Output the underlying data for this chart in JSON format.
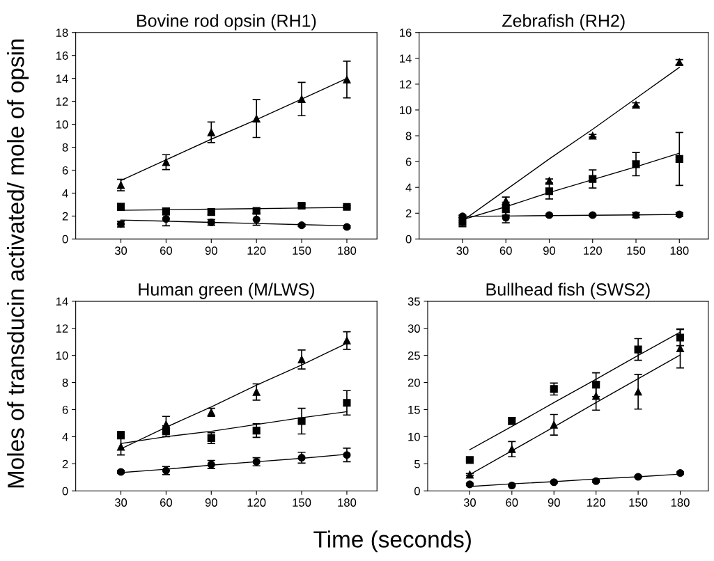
{
  "chart_data": [
    {
      "type": "scatter",
      "title": "Bovine rod opsin (RH1)",
      "ylabel": "Moles of transducin activated/ mole of opsin",
      "x": [
        30,
        60,
        90,
        120,
        150,
        180
      ],
      "xlim": [
        0,
        200
      ],
      "xticks": [
        30,
        60,
        90,
        120,
        150,
        180
      ],
      "ylim": [
        0,
        18
      ],
      "yticks": [
        0,
        2,
        4,
        6,
        8,
        10,
        12,
        14,
        16,
        18
      ],
      "grid": false,
      "series": [
        {
          "color": "#000000",
          "marker": "triangle",
          "values": [
            4.7,
            6.7,
            9.3,
            10.5,
            12.2,
            13.9
          ],
          "errors": [
            0.5,
            0.65,
            0.9,
            1.65,
            1.45,
            1.6
          ]
        },
        {
          "color": "#000000",
          "marker": "square",
          "values": [
            2.8,
            2.4,
            2.35,
            2.45,
            2.9,
            2.8
          ],
          "errors": [
            0.3,
            0.3,
            0.25,
            0.2,
            0.15,
            0.1
          ]
        },
        {
          "color": "#000000",
          "marker": "circle",
          "values": [
            1.3,
            1.75,
            1.45,
            1.7,
            1.2,
            1.05
          ],
          "errors": [
            0.25,
            0.6,
            0.25,
            0.5,
            0.1,
            0.1
          ]
        },
        {
          "type": "line",
          "color": "#000000",
          "values": [
            5.1,
            6.9,
            8.7,
            10.4,
            12.2,
            14.0
          ]
        },
        {
          "type": "line",
          "color": "#000000",
          "values": [
            2.5,
            2.55,
            2.6,
            2.65,
            2.7,
            2.75
          ]
        },
        {
          "type": "line",
          "color": "#000000",
          "values": [
            1.65,
            1.55,
            1.45,
            1.35,
            1.25,
            1.15
          ]
        }
      ]
    },
    {
      "type": "scatter",
      "title": "Zebrafish (RH2)",
      "x": [
        30,
        60,
        90,
        120,
        150,
        180
      ],
      "xlim": [
        0,
        200
      ],
      "xticks": [
        30,
        60,
        90,
        120,
        150,
        180
      ],
      "ylim": [
        0,
        16
      ],
      "yticks": [
        0,
        2,
        4,
        6,
        8,
        10,
        12,
        14,
        16
      ],
      "grid": false,
      "series": [
        {
          "color": "#000000",
          "marker": "triangle",
          "values": [
            null,
            2.95,
            4.5,
            8.0,
            10.4,
            13.7
          ],
          "errors": [
            null,
            0.3,
            0.15,
            0.1,
            0.15,
            0.2
          ]
        },
        {
          "color": "#000000",
          "marker": "square",
          "values": [
            1.3,
            2.35,
            3.7,
            4.65,
            5.8,
            6.2
          ],
          "errors": [
            0.35,
            0.5,
            0.6,
            0.7,
            0.9,
            2.05
          ]
        },
        {
          "color": "#000000",
          "marker": "circle",
          "values": [
            1.75,
            1.65,
            1.85,
            1.85,
            1.85,
            1.9
          ],
          "errors": [
            0.1,
            0.4,
            0.08,
            0.08,
            0.2,
            0.15
          ]
        },
        {
          "type": "line",
          "color": "#000000",
          "values": [
            1.4,
            3.8,
            6.2,
            8.5,
            10.9,
            13.3
          ]
        },
        {
          "type": "line",
          "color": "#000000",
          "values": [
            1.5,
            2.5,
            3.6,
            4.6,
            5.6,
            6.65
          ]
        },
        {
          "type": "line",
          "color": "#000000",
          "values": [
            1.75,
            1.78,
            1.81,
            1.84,
            1.87,
            1.9
          ]
        }
      ]
    },
    {
      "type": "scatter",
      "title": "Human green (M/LWS)",
      "xlabel": "Time (seconds)",
      "x": [
        30,
        60,
        90,
        120,
        150,
        180
      ],
      "xlim": [
        0,
        200
      ],
      "xticks": [
        30,
        60,
        90,
        120,
        150,
        180
      ],
      "ylim": [
        0,
        14
      ],
      "yticks": [
        0,
        2,
        4,
        6,
        8,
        10,
        12,
        14
      ],
      "grid": false,
      "series": [
        {
          "color": "#000000",
          "marker": "triangle",
          "values": [
            3.25,
            4.9,
            5.8,
            7.3,
            9.7,
            11.1
          ],
          "errors": [
            0.6,
            0.6,
            0.3,
            0.6,
            0.7,
            0.65
          ]
        },
        {
          "color": "#000000",
          "marker": "square",
          "values": [
            4.15,
            4.4,
            3.9,
            4.45,
            5.15,
            6.5
          ],
          "errors": [
            0.15,
            0.4,
            0.4,
            0.5,
            0.95,
            0.9
          ]
        },
        {
          "color": "#000000",
          "marker": "circle",
          "values": [
            1.4,
            1.5,
            1.95,
            2.15,
            2.45,
            2.65
          ],
          "errors": [
            0.1,
            0.3,
            0.3,
            0.3,
            0.4,
            0.5
          ]
        },
        {
          "type": "line",
          "color": "#000000",
          "values": [
            3.1,
            4.7,
            6.2,
            7.8,
            9.3,
            10.9
          ]
        },
        {
          "type": "line",
          "color": "#000000",
          "values": [
            3.5,
            4.0,
            4.4,
            4.9,
            5.4,
            5.85
          ]
        },
        {
          "type": "line",
          "color": "#000000",
          "values": [
            1.35,
            1.6,
            1.9,
            2.15,
            2.4,
            2.7
          ]
        }
      ]
    },
    {
      "type": "scatter",
      "title": "Bullhead fish (SWS2)",
      "x": [
        30,
        60,
        90,
        120,
        150,
        180
      ],
      "xlim": [
        0,
        200
      ],
      "xticks": [
        30,
        60,
        90,
        120,
        150,
        180
      ],
      "ylim": [
        0,
        35
      ],
      "yticks": [
        0,
        5,
        10,
        15,
        20,
        25,
        30,
        35
      ],
      "grid": false,
      "series": [
        {
          "color": "#000000",
          "marker": "square",
          "values": [
            5.7,
            12.9,
            18.8,
            19.6,
            26.1,
            28.3
          ],
          "errors": [
            0.2,
            0.6,
            1.1,
            2.2,
            2.0,
            1.5
          ]
        },
        {
          "color": "#000000",
          "marker": "triangle",
          "values": [
            3.0,
            7.7,
            12.2,
            17.5,
            18.3,
            26.3
          ],
          "errors": [
            0.2,
            1.4,
            1.9,
            2.6,
            3.2,
            3.6
          ]
        },
        {
          "color": "#000000",
          "marker": "circle",
          "values": [
            1.2,
            1.0,
            1.6,
            1.8,
            2.6,
            3.3
          ],
          "errors": [
            0.2,
            0.1,
            0.15,
            0.2,
            0.15,
            0.2
          ]
        },
        {
          "type": "line",
          "color": "#000000",
          "values": [
            7.6,
            11.9,
            16.3,
            20.6,
            25.0,
            29.3
          ]
        },
        {
          "type": "line",
          "color": "#000000",
          "values": [
            3.0,
            7.4,
            11.8,
            16.3,
            20.7,
            25.1
          ]
        },
        {
          "type": "line",
          "color": "#000000",
          "values": [
            0.8,
            1.3,
            1.7,
            2.2,
            2.6,
            3.1
          ]
        }
      ]
    }
  ]
}
